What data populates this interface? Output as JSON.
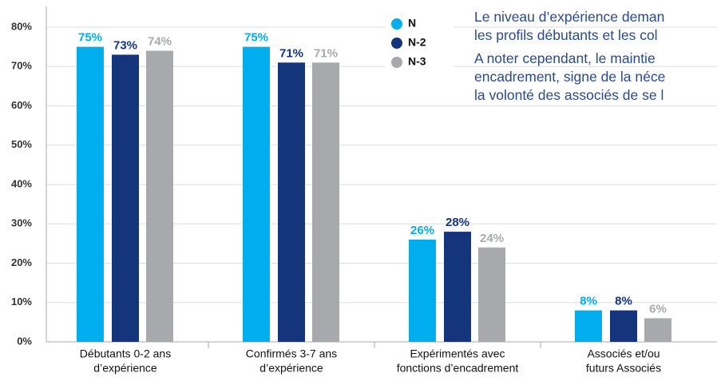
{
  "chart_data": {
    "type": "bar",
    "categories": [
      [
        "Débutants 0-2 ans",
        "d’expérience"
      ],
      [
        "Confirmés 3-7 ans",
        "d’expérience"
      ],
      [
        "Expérimentés avec",
        "fonctions d’encadrement"
      ],
      [
        "Associés et/ou",
        "futurs Associés"
      ]
    ],
    "series": [
      {
        "name": "N",
        "color": "#00aeef",
        "values": [
          75,
          75,
          26,
          8
        ],
        "value_labels": [
          "75%",
          "75%",
          "26%",
          "8%"
        ]
      },
      {
        "name": "N-2",
        "color": "#14347c",
        "values": [
          73,
          71,
          28,
          8
        ],
        "value_labels": [
          "73%",
          "71%",
          "28%",
          "8%"
        ]
      },
      {
        "name": "N-3",
        "color": "#a7a9ac",
        "values": [
          74,
          71,
          24,
          6
        ],
        "value_labels": [
          "74%",
          "71%",
          "24%",
          "6%"
        ]
      }
    ],
    "ylim": [
      0,
      80
    ],
    "yticks": [
      {
        "value": 0,
        "label": "0%"
      },
      {
        "value": 10,
        "label": "10%"
      },
      {
        "value": 20,
        "label": "20%"
      },
      {
        "value": 30,
        "label": "30%"
      },
      {
        "value": 40,
        "label": "40%"
      },
      {
        "value": 50,
        "label": "50%"
      },
      {
        "value": 60,
        "label": "60%"
      },
      {
        "value": 70,
        "label": "70%"
      },
      {
        "value": 80,
        "label": "80%"
      }
    ],
    "grid": true,
    "legend": "top"
  },
  "text_lines": [
    [
      "Le niveau d’expérience deman",
      "les profils débutants et les col"
    ],
    [
      "A noter cependant, le maintie",
      "encadrement, signe de la néce",
      "la volonté des associés de se l"
    ]
  ]
}
